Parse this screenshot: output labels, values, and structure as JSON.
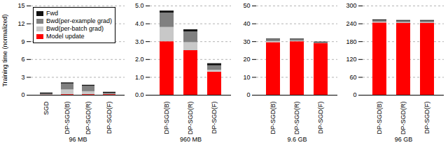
{
  "chart_data": [
    {
      "type": "bar",
      "stacked": true,
      "grid": true,
      "legend": "upper left",
      "xlabel": "96 MB",
      "ylabel": "Training time (normalized)",
      "categories": [
        "SGD",
        "DP-SGD(B)",
        "DP-SGD(R)",
        "DP-SGD(F)"
      ],
      "series": [
        {
          "name": "Fwd",
          "color": "#111111",
          "values": [
            0.2,
            0.18,
            0.18,
            0.2
          ]
        },
        {
          "name": "Bwd(per-example grad)",
          "color": "#808080",
          "values": [
            0.1,
            1.0,
            0.9,
            0.15
          ]
        },
        {
          "name": "Bwd(per-batch grad)",
          "color": "#c8c8c8",
          "values": [
            0.05,
            0.8,
            0.5,
            0.05
          ]
        },
        {
          "name": "Model update",
          "color": "#ff0000",
          "values": [
            0.03,
            0.1,
            0.1,
            0.1
          ]
        }
      ],
      "ylim": [
        0,
        15
      ],
      "yticks": [
        0,
        3,
        6,
        9,
        12,
        15
      ]
    },
    {
      "type": "bar",
      "stacked": true,
      "grid": true,
      "xlabel": "960 MB",
      "categories": [
        "DP-SGD(B)",
        "DP-SGD(R)",
        "DP-SGD(F)"
      ],
      "series": [
        {
          "name": "Fwd",
          "color": "#111111",
          "values": [
            0.12,
            0.12,
            0.12
          ]
        },
        {
          "name": "Bwd(per-example grad)",
          "color": "#808080",
          "values": [
            0.8,
            0.6,
            0.25
          ]
        },
        {
          "name": "Bwd(per-batch grad)",
          "color": "#c8c8c8",
          "values": [
            0.8,
            0.45,
            0.1
          ]
        },
        {
          "name": "Model update",
          "color": "#ff0000",
          "values": [
            3.0,
            2.5,
            1.3
          ]
        }
      ],
      "ylim": [
        0,
        5
      ],
      "yticks": [
        0,
        1,
        2,
        3,
        4,
        5
      ]
    },
    {
      "type": "bar",
      "stacked": true,
      "grid": true,
      "xlabel": "9.6 GB",
      "categories": [
        "DP-SGD(B)",
        "DP-SGD(R)",
        "DP-SGD(F)"
      ],
      "series": [
        {
          "name": "Fwd",
          "color": "#111111",
          "values": [
            0.4,
            0.4,
            0.4
          ]
        },
        {
          "name": "Bwd(per-example grad)",
          "color": "#808080",
          "values": [
            1.0,
            0.8,
            0.3
          ]
        },
        {
          "name": "Bwd(per-batch grad)",
          "color": "#c8c8c8",
          "values": [
            0.6,
            0.3,
            0.1
          ]
        },
        {
          "name": "Model update",
          "color": "#ff0000",
          "values": [
            29.5,
            30.0,
            29.0
          ]
        }
      ],
      "ylim": [
        0,
        50
      ],
      "yticks": [
        0,
        10,
        20,
        30,
        40,
        50
      ]
    },
    {
      "type": "bar",
      "stacked": true,
      "grid": true,
      "xlabel": "96 GB",
      "categories": [
        "DP-SGD(B)",
        "DP-SGD(R)",
        "DP-SGD(F)"
      ],
      "series": [
        {
          "name": "Fwd",
          "color": "#111111",
          "values": [
            2.5,
            2.5,
            2.5
          ]
        },
        {
          "name": "Bwd(per-example grad)",
          "color": "#808080",
          "values": [
            5.0,
            5.0,
            5.0
          ]
        },
        {
          "name": "Bwd(per-batch grad)",
          "color": "#c8c8c8",
          "values": [
            3.0,
            2.0,
            2.0
          ]
        },
        {
          "name": "Model update",
          "color": "#ff0000",
          "values": [
            243.0,
            242.0,
            242.0
          ]
        }
      ],
      "ylim": [
        0,
        300
      ],
      "yticks": [
        0,
        60,
        120,
        180,
        240,
        300
      ]
    }
  ]
}
